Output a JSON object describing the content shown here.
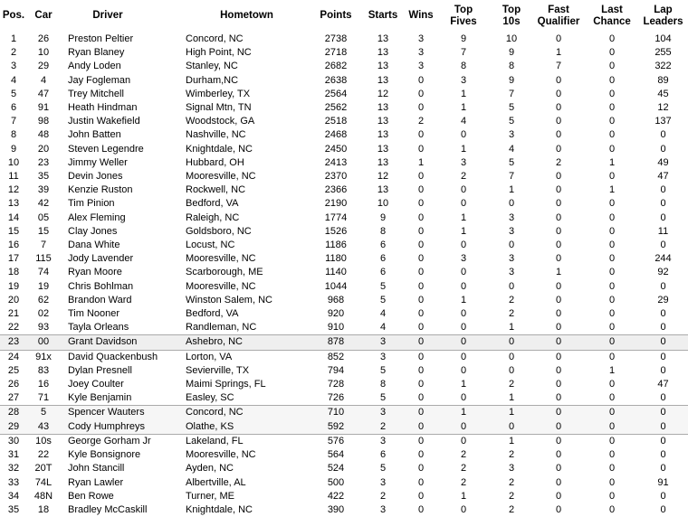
{
  "colors": {
    "text": "#000000",
    "background": "#ffffff",
    "highlight_row_fill": "#efefef",
    "highlight_band_fill": "#f6f6f6",
    "divider_line": "#aaaaaa"
  },
  "table": {
    "columns": [
      {
        "key": "pos",
        "label": "Pos."
      },
      {
        "key": "car",
        "label": "Car"
      },
      {
        "key": "driver",
        "label": "Driver"
      },
      {
        "key": "hometown",
        "label": "Hometown"
      },
      {
        "key": "points",
        "label": "Points"
      },
      {
        "key": "starts",
        "label": "Starts"
      },
      {
        "key": "wins",
        "label": "Wins"
      },
      {
        "key": "top_fives",
        "label": "Top\nFives"
      },
      {
        "key": "top_10s",
        "label": "Top\n10s"
      },
      {
        "key": "fast_qualifier",
        "label": "Fast\nQualifier"
      },
      {
        "key": "last_chance",
        "label": "Last\nChance"
      },
      {
        "key": "lap_leaders",
        "label": "Lap\nLeaders"
      }
    ],
    "rows": [
      [
        "1",
        "26",
        "Preston Peltier",
        "Concord, NC",
        "2738",
        "13",
        "3",
        "9",
        "10",
        "0",
        "0",
        "104"
      ],
      [
        "2",
        "10",
        "Ryan Blaney",
        "High Point, NC",
        "2718",
        "13",
        "3",
        "7",
        "9",
        "1",
        "0",
        "255"
      ],
      [
        "3",
        "29",
        "Andy Loden",
        "Stanley, NC",
        "2682",
        "13",
        "3",
        "8",
        "8",
        "7",
        "0",
        "322"
      ],
      [
        "4",
        "4",
        "Jay Fogleman",
        "Durham,NC",
        "2638",
        "13",
        "0",
        "3",
        "9",
        "0",
        "0",
        "89"
      ],
      [
        "5",
        "47",
        "Trey Mitchell",
        "Wimberley, TX",
        "2564",
        "12",
        "0",
        "1",
        "7",
        "0",
        "0",
        "45"
      ],
      [
        "6",
        "91",
        "Heath Hindman",
        "Signal Mtn, TN",
        "2562",
        "13",
        "0",
        "1",
        "5",
        "0",
        "0",
        "12"
      ],
      [
        "7",
        "98",
        "Justin Wakefield",
        "Woodstock, GA",
        "2518",
        "13",
        "2",
        "4",
        "5",
        "0",
        "0",
        "137"
      ],
      [
        "8",
        "48",
        "John Batten",
        "Nashville, NC",
        "2468",
        "13",
        "0",
        "0",
        "3",
        "0",
        "0",
        "0"
      ],
      [
        "9",
        "20",
        "Steven Legendre",
        "Knightdale, NC",
        "2450",
        "13",
        "0",
        "1",
        "4",
        "0",
        "0",
        "0"
      ],
      [
        "10",
        "23",
        "Jimmy Weller",
        "Hubbard, OH",
        "2413",
        "13",
        "1",
        "3",
        "5",
        "2",
        "1",
        "49"
      ],
      [
        "11",
        "35",
        "Devin Jones",
        "Mooresville, NC",
        "2370",
        "12",
        "0",
        "2",
        "7",
        "0",
        "0",
        "47"
      ],
      [
        "12",
        "39",
        "Kenzie Ruston",
        "Rockwell, NC",
        "2366",
        "13",
        "0",
        "0",
        "1",
        "0",
        "1",
        "0"
      ],
      [
        "13",
        "42",
        "Tim Pinion",
        "Bedford, VA",
        "2190",
        "10",
        "0",
        "0",
        "0",
        "0",
        "0",
        "0"
      ],
      [
        "14",
        "05",
        "Alex Fleming",
        "Raleigh, NC",
        "1774",
        "9",
        "0",
        "1",
        "3",
        "0",
        "0",
        "0"
      ],
      [
        "15",
        "15",
        "Clay Jones",
        "Goldsboro, NC",
        "1526",
        "8",
        "0",
        "1",
        "3",
        "0",
        "0",
        "11"
      ],
      [
        "16",
        "7",
        "Dana White",
        "Locust, NC",
        "1186",
        "6",
        "0",
        "0",
        "0",
        "0",
        "0",
        "0"
      ],
      [
        "17",
        "115",
        "Jody Lavender",
        "Mooresville, NC",
        "1180",
        "6",
        "0",
        "3",
        "3",
        "0",
        "0",
        "244"
      ],
      [
        "18",
        "74",
        "Ryan Moore",
        "Scarborough, ME",
        "1140",
        "6",
        "0",
        "0",
        "3",
        "1",
        "0",
        "92"
      ],
      [
        "19",
        "19",
        "Chris Bohlman",
        "Mooresville, NC",
        "1044",
        "5",
        "0",
        "0",
        "0",
        "0",
        "0",
        "0"
      ],
      [
        "20",
        "62",
        "Brandon Ward",
        "Winston Salem, NC",
        "968",
        "5",
        "0",
        "1",
        "2",
        "0",
        "0",
        "29"
      ],
      [
        "21",
        "02",
        "Tim Nooner",
        "Bedford, VA",
        "920",
        "4",
        "0",
        "0",
        "2",
        "0",
        "0",
        "0"
      ],
      [
        "22",
        "93",
        "Tayla Orleans",
        "Randleman, NC",
        "910",
        "4",
        "0",
        "0",
        "1",
        "0",
        "0",
        "0"
      ],
      [
        "23",
        "00",
        "Grant Davidson",
        "Ashebro, NC",
        "878",
        "3",
        "0",
        "0",
        "0",
        "0",
        "0",
        "0"
      ],
      [
        "24",
        "91x",
        "David Quackenbush",
        "Lorton, VA",
        "852",
        "3",
        "0",
        "0",
        "0",
        "0",
        "0",
        "0"
      ],
      [
        "25",
        "83",
        "Dylan Presnell",
        "Sevierville, TX",
        "794",
        "5",
        "0",
        "0",
        "0",
        "0",
        "1",
        "0"
      ],
      [
        "26",
        "16",
        "Joey Coulter",
        "Maimi Springs, FL",
        "728",
        "8",
        "0",
        "1",
        "2",
        "0",
        "0",
        "47"
      ],
      [
        "27",
        "71",
        "Kyle Benjamin",
        "Easley, SC",
        "726",
        "5",
        "0",
        "0",
        "1",
        "0",
        "0",
        "0"
      ],
      [
        "28",
        "5",
        "Spencer Wauters",
        "Concord, NC",
        "710",
        "3",
        "0",
        "1",
        "1",
        "0",
        "0",
        "0"
      ],
      [
        "29",
        "43",
        "Cody Humphreys",
        "Olathe, KS",
        "592",
        "2",
        "0",
        "0",
        "0",
        "0",
        "0",
        "0"
      ],
      [
        "30",
        "10s",
        "George Gorham Jr",
        "Lakeland, FL",
        "576",
        "3",
        "0",
        "0",
        "1",
        "0",
        "0",
        "0"
      ],
      [
        "31",
        "22",
        "Kyle Bonsignore",
        "Mooresville, NC",
        "564",
        "6",
        "0",
        "2",
        "2",
        "0",
        "0",
        "0"
      ],
      [
        "32",
        "20T",
        "John Stancill",
        "Ayden, NC",
        "524",
        "5",
        "0",
        "2",
        "3",
        "0",
        "0",
        "0"
      ],
      [
        "33",
        "74L",
        "Ryan Lawler",
        "Albertville, AL",
        "500",
        "3",
        "0",
        "2",
        "2",
        "0",
        "0",
        "91"
      ],
      [
        "34",
        "48N",
        "Ben Rowe",
        "Turner, ME",
        "422",
        "2",
        "0",
        "1",
        "2",
        "0",
        "0",
        "0"
      ],
      [
        "35",
        "18",
        "Bradley McCaskill",
        "Knightdale, NC",
        "390",
        "3",
        "0",
        "0",
        "2",
        "0",
        "0",
        "0"
      ]
    ]
  }
}
